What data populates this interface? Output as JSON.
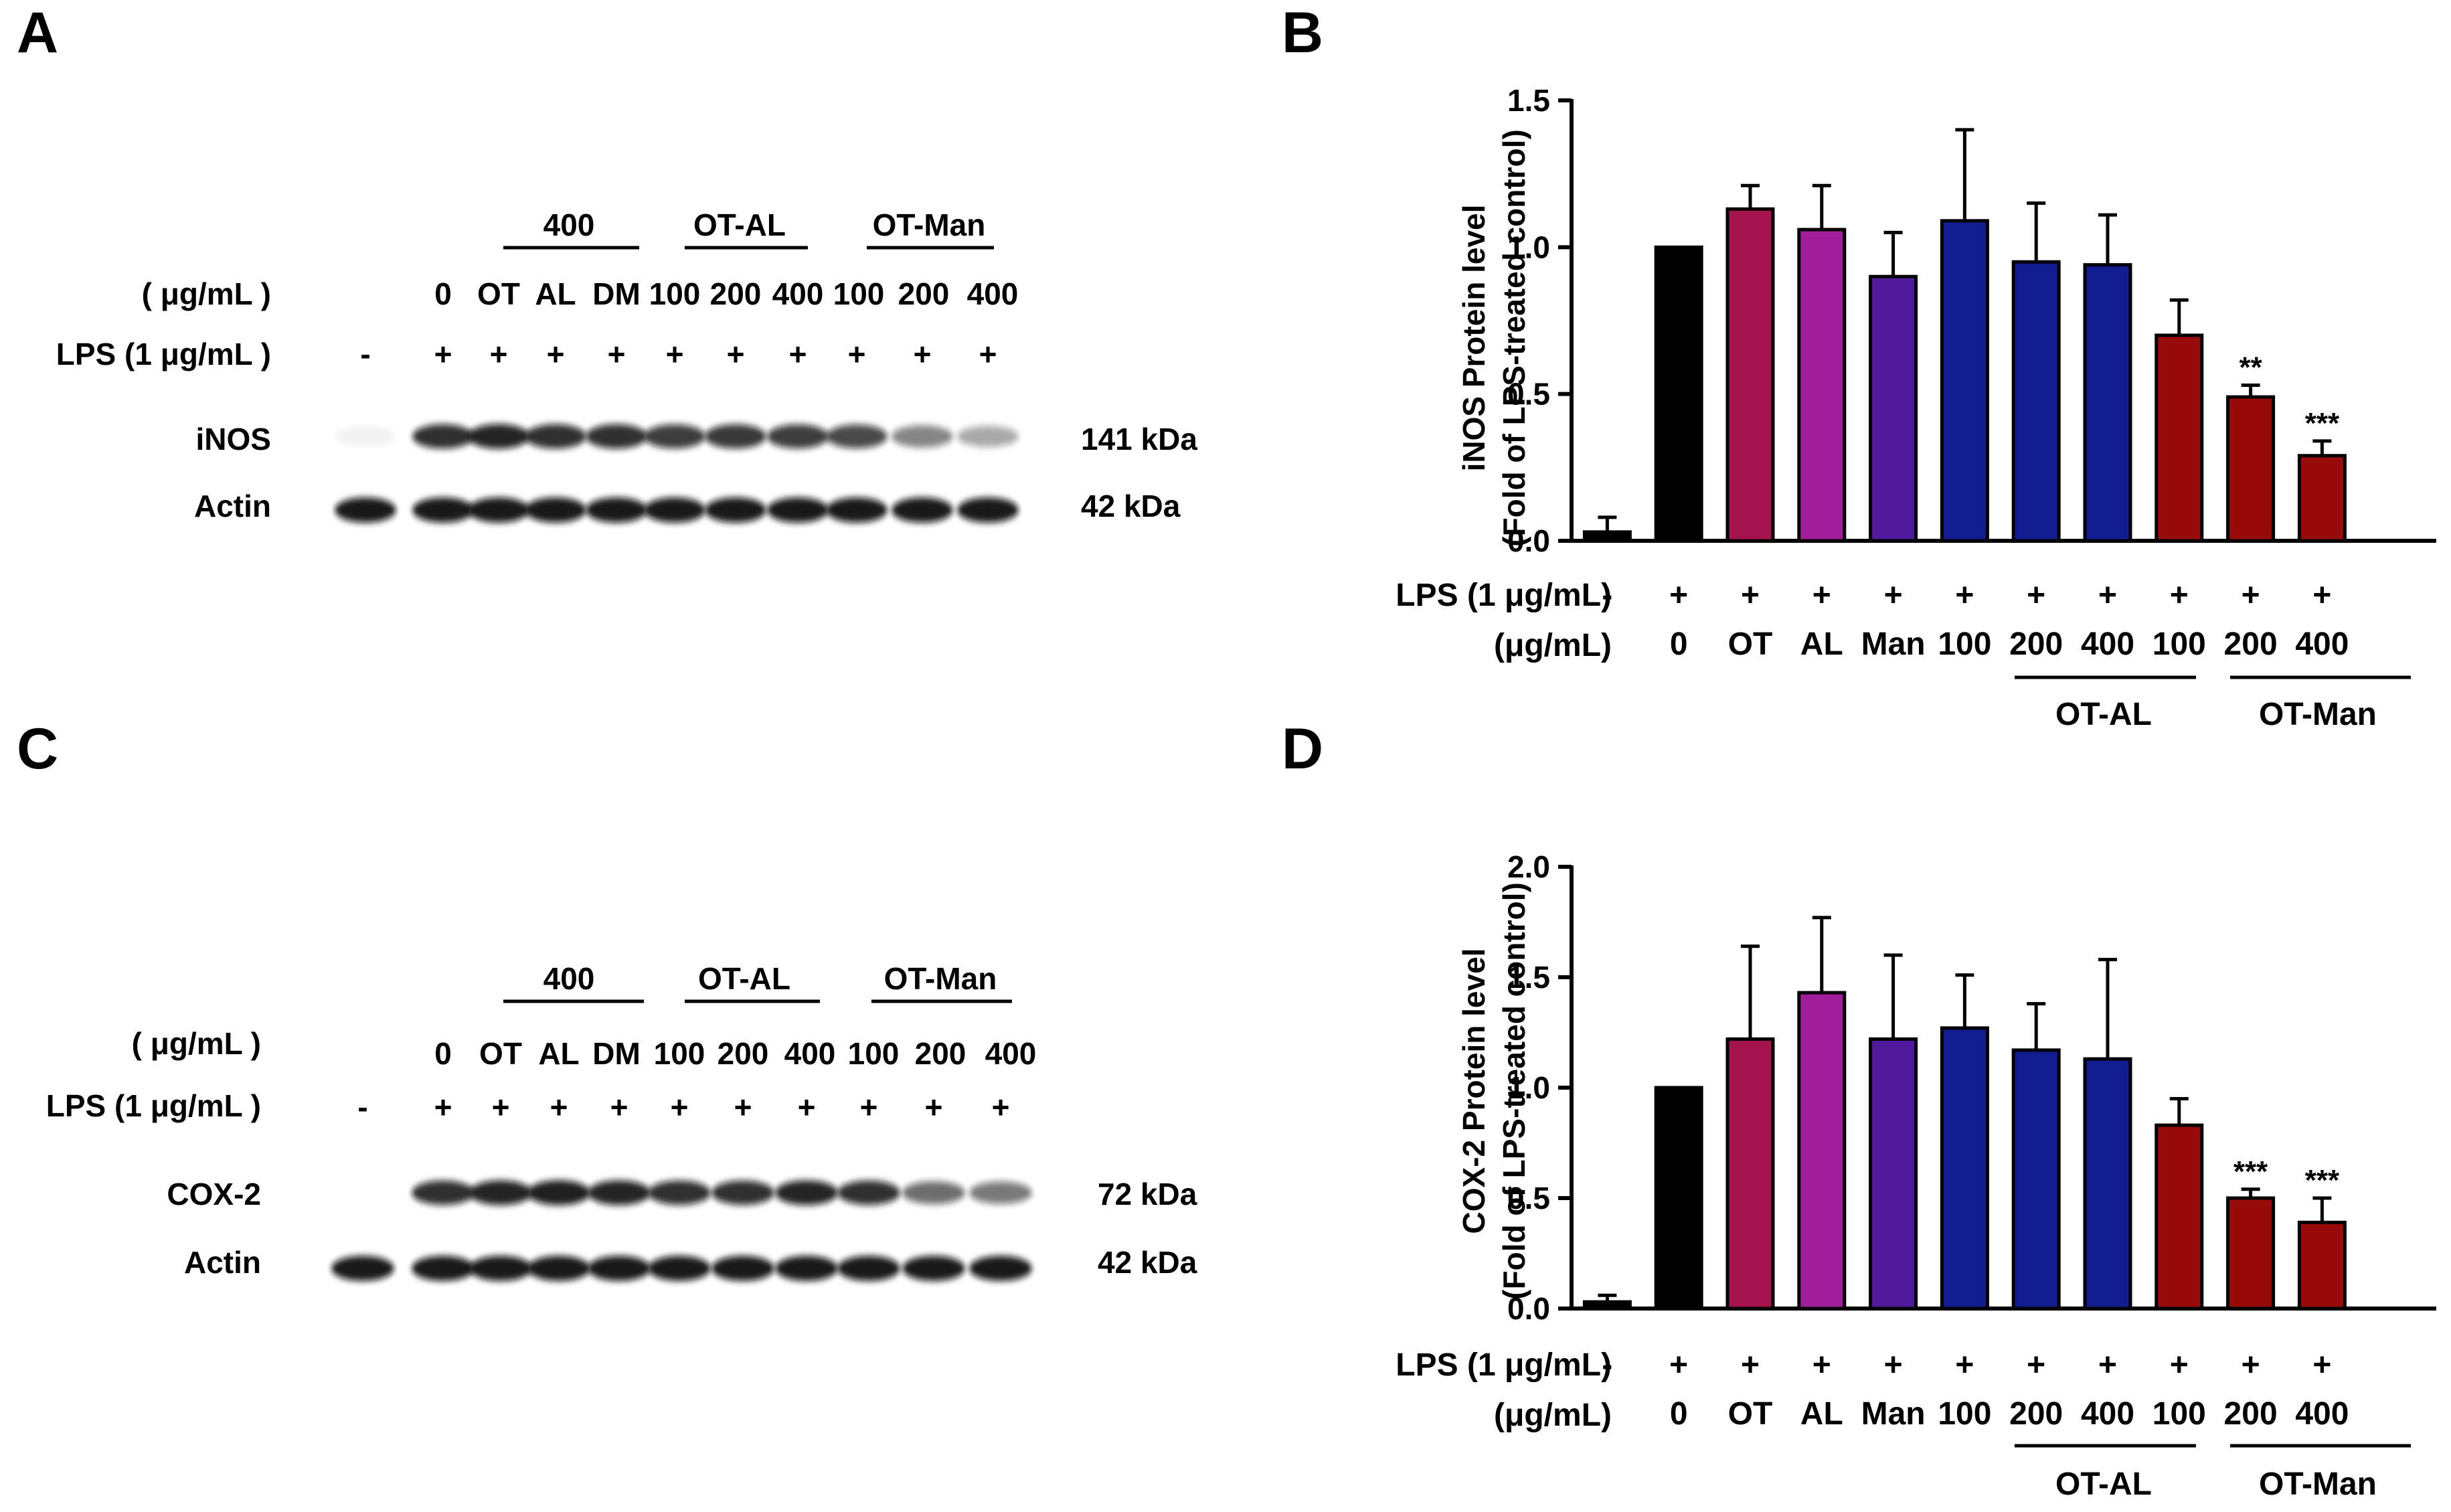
{
  "panels": {
    "A": {
      "letter": "A",
      "group_labels": [
        "400",
        "OT-AL",
        "OT-Man"
      ],
      "conc_row_label": "( μg/mL )",
      "conc_values": [
        "0",
        "OT",
        "AL",
        "DM",
        "100",
        "200",
        "400",
        "100",
        "200",
        "400"
      ],
      "lps_row_label": "LPS (1 μg/mL )",
      "lps_values": [
        "-",
        "+",
        "+",
        "+",
        "+",
        "+",
        "+",
        "+",
        "+",
        "+",
        "+"
      ],
      "bands": [
        {
          "name": "iNOS",
          "kda": "141 kDa",
          "intensity": [
            0.05,
            0.85,
            0.9,
            0.85,
            0.85,
            0.8,
            0.82,
            0.8,
            0.75,
            0.5,
            0.35
          ]
        },
        {
          "name": "Actin",
          "kda": "42 kDa",
          "intensity": [
            0.95,
            0.95,
            0.95,
            0.95,
            0.95,
            0.95,
            0.95,
            0.95,
            0.95,
            0.95,
            0.95
          ]
        }
      ]
    },
    "C": {
      "letter": "C",
      "group_labels": [
        "400",
        "OT-AL",
        "OT-Man"
      ],
      "conc_row_label": "( μg/mL )",
      "conc_values": [
        "0",
        "OT",
        "AL",
        "DM",
        "100",
        "200",
        "400",
        "100",
        "200",
        "400"
      ],
      "lps_row_label": "LPS (1 μg/mL )",
      "lps_values": [
        "-",
        "+",
        "+",
        "+",
        "+",
        "+",
        "+",
        "+",
        "+",
        "+",
        "+"
      ],
      "bands": [
        {
          "name": "COX-2",
          "kda": "72 kDa",
          "intensity": [
            0.02,
            0.85,
            0.9,
            0.92,
            0.9,
            0.85,
            0.85,
            0.9,
            0.85,
            0.6,
            0.55
          ]
        },
        {
          "name": "Actin",
          "kda": "42 kDa",
          "intensity": [
            0.95,
            0.95,
            0.95,
            0.95,
            0.95,
            0.95,
            0.95,
            0.95,
            0.95,
            0.95,
            0.95
          ]
        }
      ]
    }
  },
  "chart_data": [
    {
      "letter": "B",
      "type": "bar",
      "ylabel_line1": "iNOS Protein level",
      "ylabel_line2": "(Fold of LPS-treated control)",
      "ylim": [
        0,
        1.5
      ],
      "yticks": [
        "0.0",
        "0.5",
        "1.0",
        "1.5"
      ],
      "ytick_values": [
        0,
        0.5,
        1.0,
        1.5
      ],
      "categories": [
        "-",
        "0",
        "OT",
        "AL",
        "Man",
        "100",
        "200",
        "400",
        "100",
        "200",
        "400"
      ],
      "lps_row_label": "LPS (1 μg/mL)",
      "lps_values": [
        "-",
        "+",
        "+",
        "+",
        "+",
        "+",
        "+",
        "+",
        "+",
        "+",
        "+"
      ],
      "conc_row_label": "(μg/mL)",
      "conc_values": [
        "",
        "0",
        "OT",
        "AL",
        "Man",
        "100",
        "200",
        "400",
        "100",
        "200",
        "400"
      ],
      "group_labels": [
        "OT-AL",
        "OT-Man"
      ],
      "values": [
        0.03,
        1.0,
        1.13,
        1.06,
        0.9,
        1.09,
        0.95,
        0.94,
        0.7,
        0.49,
        0.29
      ],
      "errors": [
        0.05,
        0.0,
        0.08,
        0.15,
        0.15,
        0.31,
        0.2,
        0.17,
        0.12,
        0.04,
        0.05
      ],
      "significance": [
        "",
        "",
        "",
        "",
        "",
        "",
        "",
        "",
        "",
        "**",
        "***"
      ],
      "colors": [
        "#000000",
        "#000000",
        "#a3144e",
        "#a01e9a",
        "#4f1a9c",
        "#111c8e",
        "#111c8e",
        "#111c8e",
        "#980b0b",
        "#980b0b",
        "#980b0b"
      ]
    },
    {
      "letter": "D",
      "type": "bar",
      "ylabel_line1": "COX-2 Protein level",
      "ylabel_line2": "(Fold of LPS-treated control)",
      "ylim": [
        0,
        2.0
      ],
      "yticks": [
        "0.0",
        "0.5",
        "1.0",
        "1.5",
        "2.0"
      ],
      "ytick_values": [
        0,
        0.5,
        1.0,
        1.5,
        2.0
      ],
      "categories": [
        "-",
        "0",
        "OT",
        "AL",
        "Man",
        "100",
        "200",
        "400",
        "100",
        "200",
        "400"
      ],
      "lps_row_label": "LPS (1 μg/mL)",
      "lps_values": [
        "-",
        "+",
        "+",
        "+",
        "+",
        "+",
        "+",
        "+",
        "+",
        "+",
        "+"
      ],
      "conc_row_label": "(μg/mL)",
      "conc_values": [
        "",
        "0",
        "OT",
        "AL",
        "Man",
        "100",
        "200",
        "400",
        "100",
        "200",
        "400"
      ],
      "group_labels": [
        "OT-AL",
        "OT-Man"
      ],
      "values": [
        0.03,
        1.0,
        1.22,
        1.43,
        1.22,
        1.27,
        1.17,
        1.13,
        0.83,
        0.5,
        0.39
      ],
      "errors": [
        0.03,
        0.0,
        0.42,
        0.34,
        0.38,
        0.24,
        0.21,
        0.45,
        0.12,
        0.04,
        0.11
      ],
      "significance": [
        "",
        "",
        "",
        "",
        "",
        "",
        "",
        "",
        "",
        "***",
        "***"
      ],
      "colors": [
        "#000000",
        "#000000",
        "#a3144e",
        "#a01e9a",
        "#4f1a9c",
        "#111c8e",
        "#111c8e",
        "#111c8e",
        "#980b0b",
        "#980b0b",
        "#980b0b"
      ]
    }
  ]
}
